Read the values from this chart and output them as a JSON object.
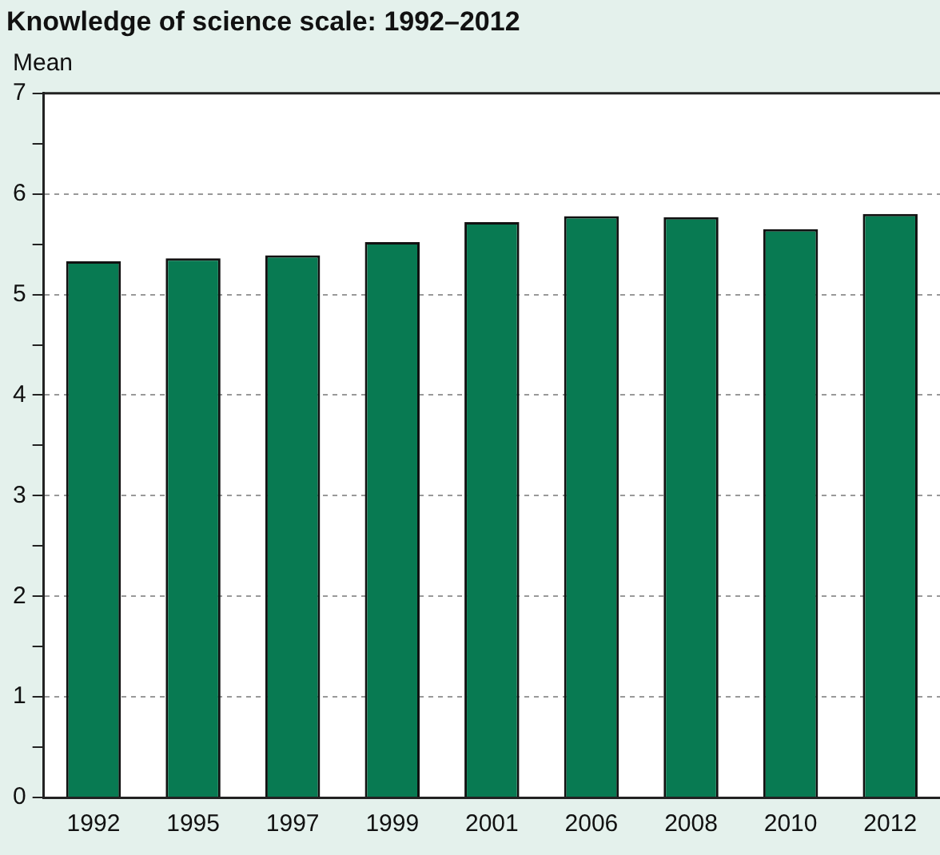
{
  "chart_data": {
    "type": "bar",
    "title": "Knowledge of science scale: 1992–2012",
    "ylabel": "Mean",
    "categories": [
      "1992",
      "1995",
      "1997",
      "1999",
      "2001",
      "2006",
      "2008",
      "2010",
      "2012"
    ],
    "values": [
      5.33,
      5.36,
      5.39,
      5.52,
      5.72,
      5.78,
      5.77,
      5.65,
      5.8
    ],
    "color": "#087a52",
    "ylim": [
      0,
      7
    ],
    "yticks": [
      0,
      {
        "value": 0.5,
        "label": null
      },
      1,
      {
        "value": 1.5,
        "label": null
      },
      2,
      {
        "value": 2.5,
        "label": null
      },
      3,
      {
        "value": 3.5,
        "label": null
      },
      4,
      {
        "value": 4.5,
        "label": null
      },
      5,
      {
        "value": 5.5,
        "label": null
      },
      6,
      {
        "value": 6.5,
        "label": null
      },
      7
    ],
    "grid": "y",
    "legend": false
  }
}
